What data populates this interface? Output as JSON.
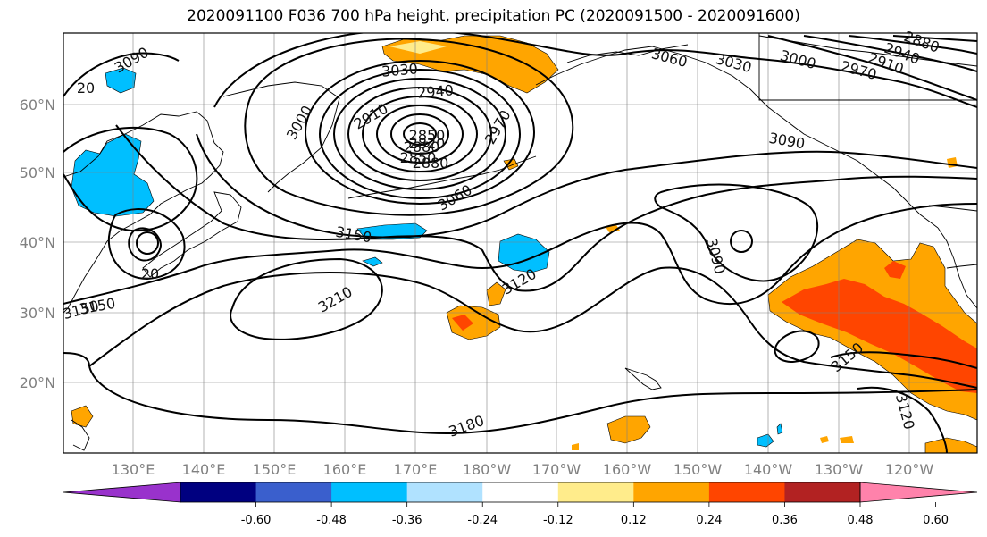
{
  "title": "2020091100 F036 700 hPa height, precipitation PC (2020091500 - 2020091600)",
  "lat_labels": [
    "60°N",
    "50°N",
    "40°N",
    "30°N",
    "20°N"
  ],
  "lon_labels": [
    "130°E",
    "140°E",
    "150°E",
    "160°E",
    "170°E",
    "180°W",
    "170°W",
    "160°W",
    "150°W",
    "140°W",
    "130°W",
    "120°W"
  ],
  "contour_labels": [
    "3090",
    "3030",
    "3060",
    "3030",
    "3000",
    "2970",
    "2940",
    "2910",
    "2880",
    "2850",
    "20",
    "3150",
    "2940",
    "2910",
    "2880",
    "3000",
    "2970",
    "2850",
    "2820",
    "2880",
    "3060",
    "3090",
    "3150",
    "3090",
    "3120",
    "20",
    "3150",
    "3210",
    "3180",
    "3150",
    "3120"
  ],
  "colorbar": {
    "colors": [
      "#9932cc",
      "#000080",
      "#3a5fcd",
      "#00bfff",
      "#b0e2ff",
      "#ffffff",
      "#ffec8b",
      "#ffa500",
      "#ff4500",
      "#b22222",
      "#ff82ab"
    ],
    "ticks": [
      "-0.60",
      "-0.48",
      "-0.36",
      "-0.24",
      "-0.12",
      "0.12",
      "0.24",
      "0.36",
      "0.48",
      "0.60"
    ]
  },
  "colors": {
    "land_line": "#000000",
    "grid": "#808080",
    "contour": "#000000"
  }
}
